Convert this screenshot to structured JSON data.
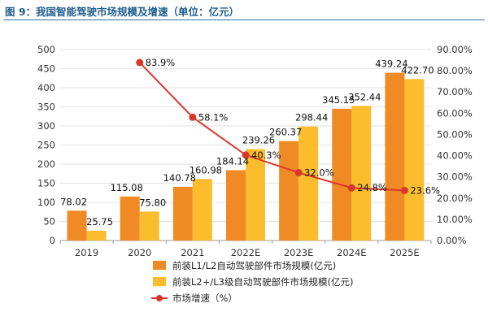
{
  "figure_title": "图 9：我国智能驾驶市场规模及增速（单位：亿元）",
  "colors": {
    "bar1": "#f08a24",
    "bar2": "#fbbd2e",
    "line": "#d9372b",
    "title": "#1f5d8c"
  },
  "chart_data": {
    "type": "bar",
    "title": "我国智能驾驶市场规模及增速（单位：亿元）",
    "categories": [
      "2019",
      "2020",
      "2021",
      "2022E",
      "2023E",
      "2024E",
      "2025E"
    ],
    "series": [
      {
        "name": "前装L1/L2自动驾驶部件市场规模(亿元)",
        "kind": "bar",
        "axis": "left",
        "values": [
          78.02,
          115.08,
          140.78,
          184.14,
          260.37,
          345.15,
          439.24
        ],
        "labels": [
          "78.02",
          "115.08",
          "140.78",
          "184.14",
          "260.37",
          "345.15",
          "439.24"
        ]
      },
      {
        "name": "前装L2+/L3级自动驾驶部件市场规模(亿元)",
        "kind": "bar",
        "axis": "left",
        "values": [
          25.75,
          75.8,
          160.98,
          239.26,
          298.44,
          352.44,
          422.7
        ],
        "labels": [
          "25.75",
          "75.80",
          "160.98",
          "239.26",
          "298.44",
          "352.44",
          "422.70"
        ]
      },
      {
        "name": "市场增速（%）",
        "kind": "line",
        "axis": "right",
        "x": [
          "2020",
          "2021",
          "2022E",
          "2023E",
          "2024E",
          "2025E"
        ],
        "values": [
          83.9,
          58.1,
          40.3,
          32.0,
          24.8,
          23.6
        ],
        "labels": [
          "83.9%",
          "58.1%",
          "40.3%",
          "32.0%",
          "24.8%",
          "23.6%"
        ]
      }
    ],
    "y_left": {
      "min": 0,
      "max": 500,
      "ticks": [
        "0",
        "50",
        "100",
        "150",
        "200",
        "250",
        "300",
        "350",
        "400",
        "450",
        "500"
      ]
    },
    "y_right": {
      "min": 0,
      "max": 90,
      "ticks": [
        "0.00%",
        "10.00%",
        "20.00%",
        "30.00%",
        "40.00%",
        "50.00%",
        "60.00%",
        "70.00%",
        "80.00%",
        "90.00%"
      ]
    },
    "grid": true,
    "legend_position": "bottom-center"
  }
}
